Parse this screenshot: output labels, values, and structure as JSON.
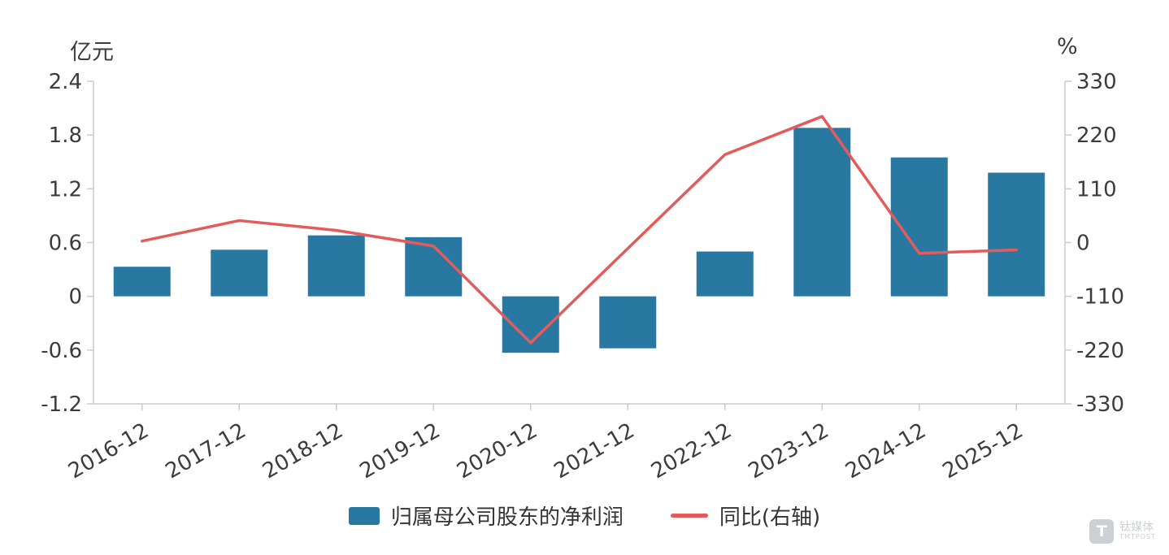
{
  "chart_data": {
    "type": "combo",
    "categories": [
      "2016-12",
      "2017-12",
      "2018-12",
      "2019-12",
      "2020-12",
      "2021-12",
      "2022-12",
      "2023-12",
      "2024-12",
      "2025-12"
    ],
    "series": [
      {
        "name": "归属母公司股东的净利润",
        "type": "bar",
        "axis": "left",
        "unit": "亿元",
        "color": "#2878a2",
        "values": [
          0.33,
          0.52,
          0.68,
          0.66,
          -0.63,
          -0.58,
          0.5,
          1.88,
          1.55,
          1.38
        ]
      },
      {
        "name": "同比(右轴)",
        "type": "line",
        "axis": "right",
        "unit": "%",
        "color": "#e25c5c",
        "values": [
          3,
          45,
          25,
          -7,
          -205,
          -12,
          180,
          258,
          -22,
          -15
        ]
      }
    ],
    "left_axis": {
      "title": "亿元",
      "min": -1.2,
      "max": 2.4,
      "ticks": [
        2.4,
        1.8,
        1.2,
        0.6,
        0,
        -0.6,
        -1.2
      ]
    },
    "right_axis": {
      "title": "%",
      "min": -330,
      "max": 330,
      "ticks": [
        330,
        220,
        110,
        0,
        -110,
        -220,
        -330
      ]
    },
    "legend_position": "bottom",
    "grid": false,
    "styles": {
      "axis_color": "#cccccc",
      "text_color": "#3c3c3c",
      "background": "#ffffff"
    }
  },
  "watermark": {
    "brand": "钛媒体",
    "sub": "TMTPOST",
    "logo_letter": "T"
  }
}
